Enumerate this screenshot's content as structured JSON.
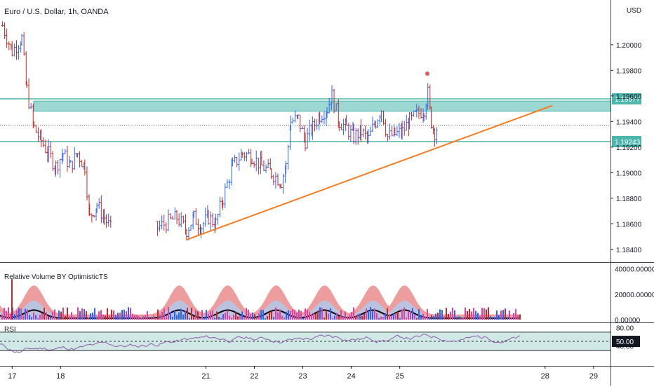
{
  "header": {
    "title": "Euro / U.S. Dollar, 1h, OANDA",
    "currency": "USD"
  },
  "colors": {
    "up": "#2962ff",
    "down": "#c62828",
    "zone": "#4db6ac",
    "trend": "#f57c20",
    "relvol_outer": "#e57373",
    "relvol_inner": "#b3c8e8",
    "relvol_line": "#000000",
    "vol_pink": "#e040a0",
    "vol_blue": "#2962ff",
    "vol_red": "#c62828",
    "rsi_line": "#8e5ba8",
    "rsi_band": "#d0e8e6",
    "marker": "#e05a5a"
  },
  "price_axis": {
    "min": 1.183,
    "max": 1.2035,
    "ticks": [
      "1.20000",
      "1.19800",
      "1.19600",
      "1.19400",
      "1.19200",
      "1.19000",
      "1.18800",
      "1.18600",
      "1.18400"
    ],
    "tick_values": [
      1.2,
      1.198,
      1.196,
      1.194,
      1.192,
      1.19,
      1.188,
      1.186,
      1.184
    ]
  },
  "levels": [
    {
      "label": "1.19577",
      "value": 1.19577
    },
    {
      "label": "1.19243",
      "value": 1.19243
    }
  ],
  "zone": {
    "low": 1.1948,
    "high": 1.1956
  },
  "trendline": {
    "from": [
      20.6,
      1.18475
    ],
    "to": [
      28.15,
      1.19525
    ]
  },
  "last_price": 1.1937,
  "time_axis": {
    "min": 16.75,
    "max": 29.35,
    "labels": [
      "17",
      "18",
      "21",
      "22",
      "23",
      "24",
      "25",
      "28",
      "29"
    ],
    "positions": [
      17,
      18,
      21,
      22,
      23,
      24,
      25,
      28,
      29
    ]
  },
  "relvol": {
    "title": "Relative Volume BY OptimisticTS",
    "ticks": [
      "40000.00000",
      "20000.00000",
      "0.00000"
    ],
    "tick_values": [
      40000,
      20000,
      0
    ],
    "max": 42000
  },
  "rsi": {
    "title": "RSI",
    "ticks": [
      "80.00",
      "40.00"
    ],
    "tick_values": [
      80,
      40
    ],
    "current_label": "50.00",
    "current": 50,
    "band": [
      30,
      70
    ],
    "min": 0,
    "max": 85
  },
  "chart_data": {
    "type": "candlestick",
    "title": "Euro / U.S. Dollar, 1h, OANDA",
    "series": [
      {
        "name": "EUR/USD",
        "anchors": [
          [
            16.8,
            1.2015
          ],
          [
            17.0,
            1.1995
          ],
          [
            17.2,
            1.2005
          ],
          [
            17.3,
            1.1965
          ],
          [
            17.45,
            1.1935
          ],
          [
            17.6,
            1.1925
          ],
          [
            17.75,
            1.1915
          ],
          [
            17.9,
            1.1905
          ],
          [
            18.05,
            1.1915
          ],
          [
            18.2,
            1.1905
          ],
          [
            18.35,
            1.1915
          ],
          [
            18.5,
            1.1905
          ],
          [
            18.6,
            1.1865
          ],
          [
            18.75,
            1.1875
          ],
          [
            18.9,
            1.1865
          ],
          [
            19.05,
            1.1855
          ],
          [
            20.0,
            1.1857
          ],
          [
            20.4,
            1.1865
          ],
          [
            20.6,
            1.1855
          ],
          [
            20.75,
            1.1865
          ],
          [
            20.9,
            1.1858
          ],
          [
            21.05,
            1.1865
          ],
          [
            21.2,
            1.186
          ],
          [
            21.35,
            1.188
          ],
          [
            21.55,
            1.1905
          ],
          [
            21.75,
            1.1915
          ],
          [
            21.95,
            1.1913
          ],
          [
            22.15,
            1.1905
          ],
          [
            22.35,
            1.19
          ],
          [
            22.55,
            1.1893
          ],
          [
            22.65,
            1.1905
          ],
          [
            22.75,
            1.194
          ],
          [
            22.9,
            1.1942
          ],
          [
            23.05,
            1.1925
          ],
          [
            23.2,
            1.1935
          ],
          [
            23.35,
            1.1945
          ],
          [
            23.5,
            1.195
          ],
          [
            23.6,
            1.196
          ],
          [
            23.75,
            1.194
          ],
          [
            23.9,
            1.1935
          ],
          [
            24.05,
            1.1928
          ],
          [
            24.2,
            1.1932
          ],
          [
            24.35,
            1.1926
          ],
          [
            24.5,
            1.194
          ],
          [
            24.62,
            1.195
          ],
          [
            24.75,
            1.1928
          ],
          [
            24.9,
            1.193
          ],
          [
            25.05,
            1.1932
          ],
          [
            25.2,
            1.194
          ],
          [
            25.35,
            1.1945
          ],
          [
            25.5,
            1.195
          ],
          [
            25.58,
            1.1962
          ],
          [
            25.65,
            1.194
          ],
          [
            25.72,
            1.1932
          ],
          [
            25.8,
            1.1937
          ]
        ]
      }
    ],
    "xlabel": "",
    "ylabel": "",
    "ylim": [
      1.183,
      1.2035
    ],
    "grid": false
  }
}
